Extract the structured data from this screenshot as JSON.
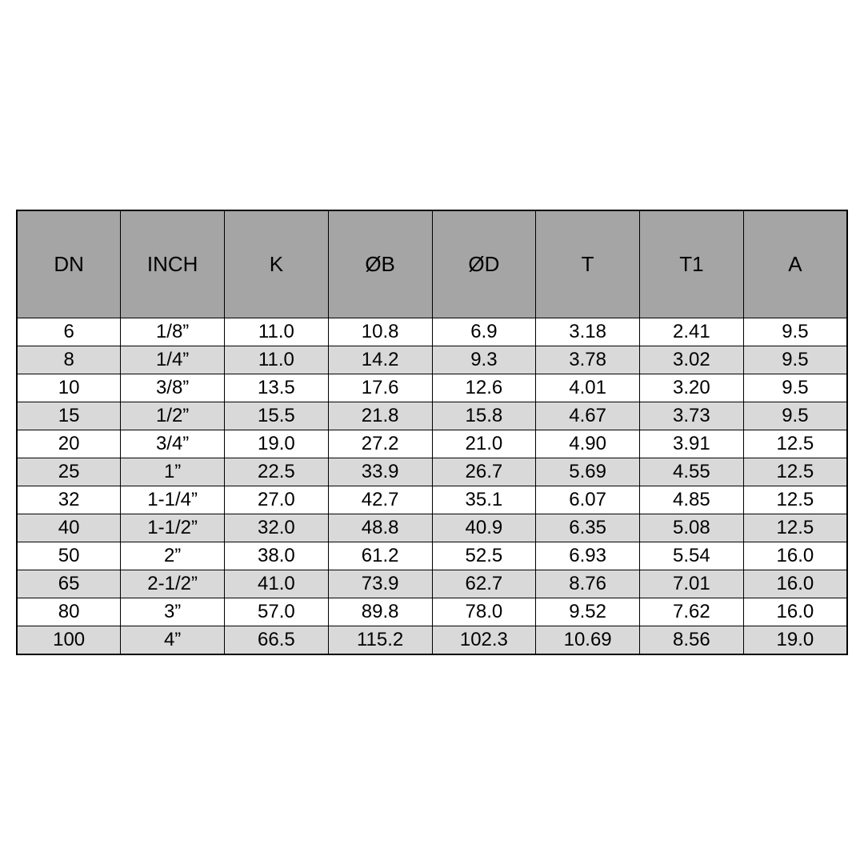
{
  "table": {
    "type": "table",
    "header_bg_color": "#a5a5a5",
    "row_even_bg_color": "#d9d9d9",
    "row_odd_bg_color": "#ffffff",
    "border_color": "#000000",
    "text_color": "#000000",
    "header_font_size": 26,
    "cell_font_size": 24,
    "header_row_height": 135,
    "data_row_height": 35,
    "columns": [
      "DN",
      "INCH",
      "K",
      "ØB",
      "ØD",
      "T",
      "T1",
      "A"
    ],
    "column_widths_pct": [
      12.5,
      12.5,
      12.5,
      12.5,
      12.5,
      12.5,
      12.5,
      12.5
    ],
    "rows": [
      [
        "6",
        "1/8”",
        "11.0",
        "10.8",
        "6.9",
        "3.18",
        "2.41",
        "9.5"
      ],
      [
        "8",
        "1/4”",
        "11.0",
        "14.2",
        "9.3",
        "3.78",
        "3.02",
        "9.5"
      ],
      [
        "10",
        "3/8”",
        "13.5",
        "17.6",
        "12.6",
        "4.01",
        "3.20",
        "9.5"
      ],
      [
        "15",
        "1/2”",
        "15.5",
        "21.8",
        "15.8",
        "4.67",
        "3.73",
        "9.5"
      ],
      [
        "20",
        "3/4”",
        "19.0",
        "27.2",
        "21.0",
        "4.90",
        "3.91",
        "12.5"
      ],
      [
        "25",
        "1”",
        "22.5",
        "33.9",
        "26.7",
        "5.69",
        "4.55",
        "12.5"
      ],
      [
        "32",
        "1-1/4”",
        "27.0",
        "42.7",
        "35.1",
        "6.07",
        "4.85",
        "12.5"
      ],
      [
        "40",
        "1-1/2”",
        "32.0",
        "48.8",
        "40.9",
        "6.35",
        "5.08",
        "12.5"
      ],
      [
        "50",
        "2”",
        "38.0",
        "61.2",
        "52.5",
        "6.93",
        "5.54",
        "16.0"
      ],
      [
        "65",
        "2-1/2”",
        "41.0",
        "73.9",
        "62.7",
        "8.76",
        "7.01",
        "16.0"
      ],
      [
        "80",
        "3”",
        "57.0",
        "89.8",
        "78.0",
        "9.52",
        "7.62",
        "16.0"
      ],
      [
        "100",
        "4”",
        "66.5",
        "115.2",
        "102.3",
        "10.69",
        "8.56",
        "19.0"
      ]
    ]
  }
}
